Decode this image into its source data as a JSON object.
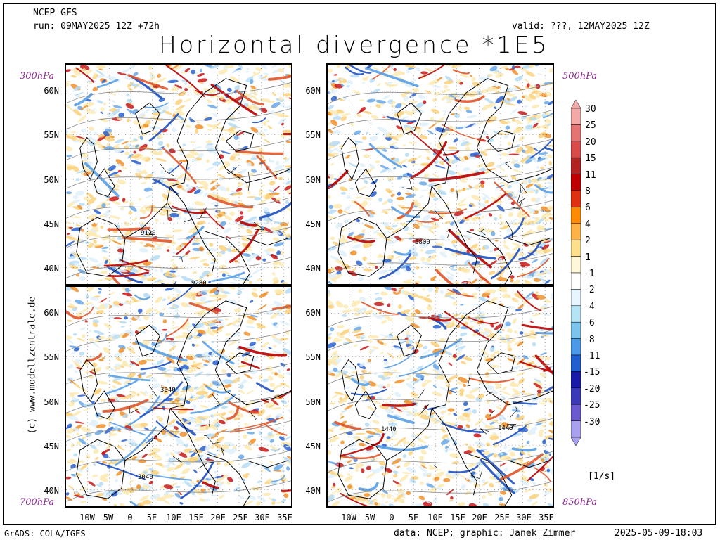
{
  "header": {
    "model": "NCEP GFS",
    "run": "run: 09MAY2025 12Z +72h",
    "valid": "valid: ???, 12MAY2025 12Z",
    "title": "Horizontal divergence *1E5"
  },
  "levels": {
    "top_left": "300hPa",
    "top_right": "500hPa",
    "bottom_left": "700hPa",
    "bottom_right": "850hPa"
  },
  "lat_labels": [
    "60N",
    "55N",
    "50N",
    "45N",
    "40N"
  ],
  "lon_labels": [
    "10W",
    "5W",
    "0",
    "5E",
    "10E",
    "15E",
    "20E",
    "25E",
    "30E",
    "35E"
  ],
  "contour_labels": {
    "tl_a": "9120",
    "tl_b": "9280",
    "tr": "5800",
    "bl_a": "3040",
    "bl_b": "3040",
    "br_a": "1440",
    "br_b": "1440"
  },
  "colorbar": {
    "labels": [
      "30",
      "25",
      "20",
      "15",
      "11",
      "8",
      "6",
      "4",
      "2",
      "1",
      "-1",
      "-2",
      "-4",
      "-6",
      "-8",
      "-11",
      "-15",
      "-20",
      "-25",
      "-30"
    ],
    "colors": [
      "#f4a9a9",
      "#e57373",
      "#d94a4a",
      "#b22222",
      "#c00000",
      "#e03010",
      "#ff8c00",
      "#ffb347",
      "#ffe08a",
      "#fff8d8",
      "#ffffff",
      "#e6f5ff",
      "#b5e4f5",
      "#7cc4ee",
      "#4a9ae8",
      "#1f5fd0",
      "#1a1aa8",
      "#3a3ab8",
      "#6a5acd",
      "#a9a0f0"
    ],
    "unit": "[1/s]"
  },
  "side_credit": "(c) www.modellzentrale.de",
  "footer": {
    "left": "GrADS: COLA/IGES",
    "middle": "data: NCEP; graphic: Janek Zimmer",
    "right": "2025-05-09-18:03"
  }
}
